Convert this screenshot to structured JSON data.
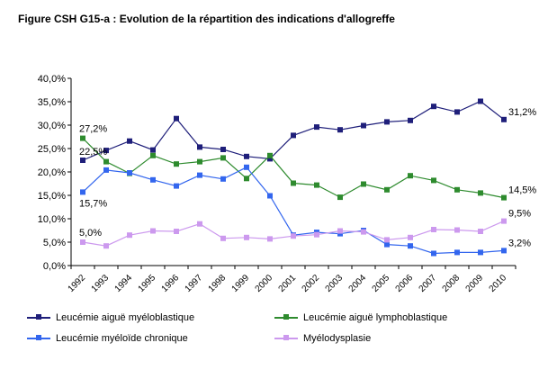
{
  "figure": {
    "title": "Figure CSH G15-a : Evolution de la répartition des indications d'allogreffe"
  },
  "chart_data": {
    "type": "line",
    "title": "Figure CSH G15-a : Evolution de la répartition des indications d'allogreffe",
    "xlabel": "",
    "ylabel": "",
    "categories": [
      "1992",
      "1993",
      "1994",
      "1995",
      "1996",
      "1997",
      "1998",
      "1999",
      "2000",
      "2001",
      "2002",
      "2003",
      "2004",
      "2005",
      "2006",
      "2007",
      "2008",
      "2009",
      "2010"
    ],
    "y_ticks": [
      "0,0%",
      "5,0%",
      "10,0%",
      "15,0%",
      "20,0%",
      "25,0%",
      "30,0%",
      "35,0%",
      "40,0%"
    ],
    "ylim": [
      0,
      40
    ],
    "grid": false,
    "legend_position": "bottom",
    "series": [
      {
        "name": "Leucémie aiguë myéloblastique",
        "color": "#1f1f7a",
        "values": [
          22.5,
          24.6,
          26.6,
          24.7,
          31.4,
          25.3,
          24.8,
          23.3,
          22.8,
          27.8,
          29.6,
          29.0,
          29.9,
          30.7,
          31.0,
          34.0,
          32.8,
          35.1,
          31.2
        ]
      },
      {
        "name": "Leucémie aiguë lymphoblastique",
        "color": "#2e8b2e",
        "values": [
          27.2,
          22.2,
          19.7,
          23.5,
          21.7,
          22.2,
          23.0,
          18.6,
          23.5,
          17.6,
          17.2,
          14.6,
          17.4,
          16.2,
          19.2,
          18.2,
          16.2,
          15.5,
          14.5
        ]
      },
      {
        "name": "Leucémie myéloïde chronique",
        "color": "#3366ee",
        "values": [
          15.7,
          20.4,
          19.8,
          18.3,
          17.0,
          19.3,
          18.5,
          21.0,
          14.9,
          6.5,
          7.1,
          6.8,
          7.5,
          4.5,
          4.2,
          2.6,
          2.8,
          2.8,
          3.2
        ]
      },
      {
        "name": "Myélodysplasie",
        "color": "#cc99ee",
        "values": [
          5.0,
          4.2,
          6.5,
          7.4,
          7.3,
          8.9,
          5.8,
          6.0,
          5.7,
          6.3,
          6.6,
          7.4,
          7.2,
          5.5,
          6.0,
          7.7,
          7.6,
          7.3,
          9.5
        ]
      }
    ],
    "data_labels": [
      {
        "series": 1,
        "index": 0,
        "text": "27,2%"
      },
      {
        "series": 0,
        "index": 0,
        "text": "22,5%"
      },
      {
        "series": 2,
        "index": 0,
        "text": "15,7%"
      },
      {
        "series": 3,
        "index": 0,
        "text": "5,0%"
      },
      {
        "series": 0,
        "index": 18,
        "text": "31,2%"
      },
      {
        "series": 1,
        "index": 18,
        "text": "14,5%"
      },
      {
        "series": 3,
        "index": 18,
        "text": "9,5%"
      },
      {
        "series": 2,
        "index": 18,
        "text": "3,2%"
      }
    ]
  },
  "legend": {
    "items": [
      {
        "label": "Leucémie aiguë myéloblastique",
        "color": "#1f1f7a"
      },
      {
        "label": "Leucémie aiguë lymphoblastique",
        "color": "#2e8b2e"
      },
      {
        "label": "Leucémie myéloïde chronique",
        "color": "#3366ee"
      },
      {
        "label": "Myélodysplasie",
        "color": "#cc99ee"
      }
    ]
  }
}
